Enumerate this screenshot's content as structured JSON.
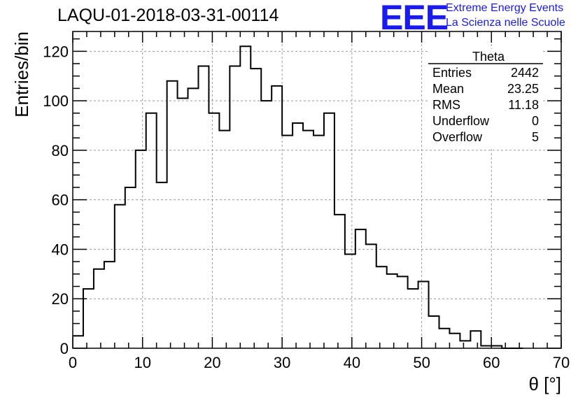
{
  "chart_data": {
    "type": "bar",
    "title": "LAQU-01-2018-03-31-00114",
    "xlabel": "θ [°]",
    "ylabel": "Entries/bin",
    "xlim": [
      0,
      70
    ],
    "ylim": [
      0,
      128
    ],
    "grid": true,
    "bin_width": 1.5,
    "bin_edges_start": 0,
    "values": [
      5,
      24,
      32,
      35,
      58,
      65,
      80,
      95,
      67,
      108,
      101,
      105,
      114,
      95,
      88,
      114,
      122,
      113,
      100,
      106,
      86,
      91,
      88,
      86,
      95,
      54,
      38,
      48,
      42,
      33,
      30,
      29,
      24,
      27,
      13,
      8,
      6,
      3,
      7,
      1,
      1,
      0,
      0
    ],
    "x_ticks": [
      "0",
      "10",
      "20",
      "30",
      "40",
      "50",
      "60",
      "70"
    ],
    "y_ticks": [
      "0",
      "20",
      "40",
      "60",
      "80",
      "100",
      "120"
    ],
    "stats": {
      "name": "Theta",
      "rows": [
        {
          "label": "Entries",
          "value": "2442"
        },
        {
          "label": "Mean",
          "value": "23.25"
        },
        {
          "label": "RMS",
          "value": "11.18"
        },
        {
          "label": "Underflow",
          "value": "0"
        },
        {
          "label": "Overflow",
          "value": "5"
        }
      ]
    }
  },
  "logo": {
    "text": "EEE",
    "line1": "Extreme Energy Events",
    "line2": "La Scienza nelle Scuole",
    "color": "#1a1aee"
  }
}
